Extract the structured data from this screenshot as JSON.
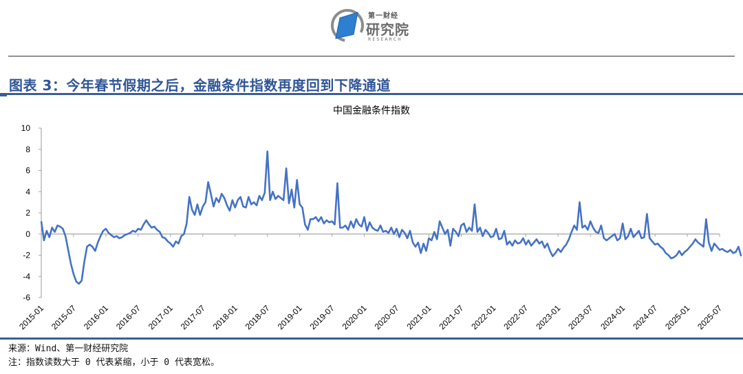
{
  "header": {
    "logo_brand": "第一财经",
    "logo_name": "研究院",
    "logo_research": "RESEARCH",
    "figure_title": "图表 3：今年春节假期之后，金融条件指数再度回到下降通道"
  },
  "footer": {
    "source": "来源：Wind、第一财经研究院",
    "note": "注：指数读数大于 0 代表紧缩，小于 0 代表宽松。"
  },
  "colors": {
    "series": "#4472c4",
    "title": "#2f5597",
    "rule": "#3c5c95",
    "axis": "#a6a6a6"
  },
  "chart_data": {
    "type": "line",
    "title": "中国金融条件指数",
    "xlabel": "",
    "ylabel": "",
    "ylim": [
      -6,
      10
    ],
    "yticks": [
      10,
      8,
      6,
      4,
      2,
      0,
      -2,
      -4,
      -6
    ],
    "grid": false,
    "legend": "none",
    "xticks": [
      "2015-01",
      "2015-07",
      "2016-01",
      "2016-07",
      "2017-01",
      "2017-07",
      "2018-01",
      "2018-07",
      "2019-01",
      "2019-07",
      "2020-01",
      "2020-07",
      "2021-01",
      "2021-07",
      "2022-01",
      "2022-07",
      "2023-01",
      "2023-07",
      "2024-01",
      "2024-07",
      "2025-01",
      "2025-07"
    ],
    "series": [
      {
        "name": "中国金融条件指数",
        "x_start": "2015-01",
        "step_months": 0.5,
        "values": [
          1.2,
          -0.6,
          0.3,
          -0.3,
          0.6,
          0.2,
          0.8,
          0.7,
          0.5,
          -0.2,
          -1.5,
          -2.8,
          -3.8,
          -4.5,
          -4.7,
          -4.4,
          -2.6,
          -1.2,
          -1.0,
          -1.2,
          -1.6,
          -0.8,
          -0.2,
          0.3,
          0.5,
          0.1,
          -0.1,
          -0.3,
          -0.2,
          -0.4,
          -0.3,
          -0.1,
          0.0,
          0.1,
          0.3,
          0.2,
          0.5,
          0.4,
          0.9,
          1.3,
          0.9,
          0.6,
          0.7,
          0.4,
          0.2,
          -0.3,
          -0.4,
          -0.7,
          -0.9,
          -1.2,
          -0.7,
          -0.9,
          -0.2,
          0.0,
          1.0,
          3.5,
          2.3,
          1.8,
          2.8,
          1.8,
          2.6,
          3.0,
          4.9,
          3.8,
          2.6,
          3.4,
          3.0,
          3.8,
          3.4,
          2.7,
          2.2,
          3.2,
          2.5,
          3.2,
          3.5,
          2.6,
          2.5,
          3.5,
          2.8,
          3.0,
          2.7,
          3.6,
          3.2,
          3.9,
          7.8,
          3.2,
          4.0,
          3.3,
          3.6,
          3.4,
          3.2,
          6.2,
          2.9,
          4.2,
          2.5,
          5.1,
          2.8,
          2.5,
          0.9,
          0.4,
          1.4,
          1.4,
          1.6,
          1.2,
          1.6,
          1.0,
          1.3,
          1.1,
          1.2,
          0.9,
          4.8,
          0.6,
          0.6,
          0.8,
          0.4,
          1.2,
          0.6,
          1.4,
          0.9,
          0.7,
          1.6,
          0.3,
          1.1,
          0.6,
          0.4,
          0.3,
          0.8,
          0.2,
          0.3,
          0.1,
          0.6,
          0.0,
          0.5,
          -0.3,
          0.4,
          0.1,
          -0.4,
          0.3,
          -0.8,
          -1.2,
          -0.8,
          -1.8,
          -0.9,
          -1.6,
          -0.4,
          -0.6,
          0.2,
          -0.5,
          1.2,
          0.6,
          0.0,
          0.4,
          -1.1,
          0.5,
          0.2,
          -0.2,
          0.8,
          1.0,
          0.2,
          0.6,
          0.3,
          2.8,
          0.2,
          0.6,
          -0.2,
          0.4,
          0.1,
          -0.3,
          -0.2,
          0.5,
          -0.5,
          -0.4,
          0.3,
          -1.0,
          -0.7,
          -1.1,
          -0.6,
          -0.9,
          -0.8,
          -0.4,
          -1.0,
          -0.6,
          -1.1,
          -0.8,
          -0.5,
          -0.9,
          -0.7,
          -1.3,
          -0.9,
          -1.6,
          -2.1,
          -1.8,
          -1.4,
          -1.7,
          -1.3,
          -1.0,
          -0.5,
          0.2,
          0.8,
          0.4,
          3.0,
          0.6,
          0.8,
          0.4,
          1.2,
          0.6,
          0.2,
          0.1,
          0.8,
          -0.4,
          -0.6,
          -0.4,
          -0.2,
          0.0,
          -0.6,
          -0.4,
          1.0,
          -0.5,
          -0.2,
          0.5,
          -0.3,
          0.0,
          0.3,
          -0.4,
          -0.3,
          1.9,
          -0.4,
          -0.7,
          -1.0,
          -0.9,
          -1.2,
          -1.4,
          -1.8,
          -2.0,
          -2.3,
          -2.2,
          -2.0,
          -1.6,
          -2.0,
          -1.7,
          -1.5,
          -1.2,
          -0.9,
          -0.5,
          -0.8,
          -1.0,
          -1.2,
          1.4,
          -0.8,
          -1.6,
          -0.9,
          -1.2,
          -1.5,
          -1.4,
          -1.6,
          -1.7,
          -1.5,
          -1.8,
          -1.7,
          -1.2,
          -2.1
        ]
      }
    ]
  }
}
